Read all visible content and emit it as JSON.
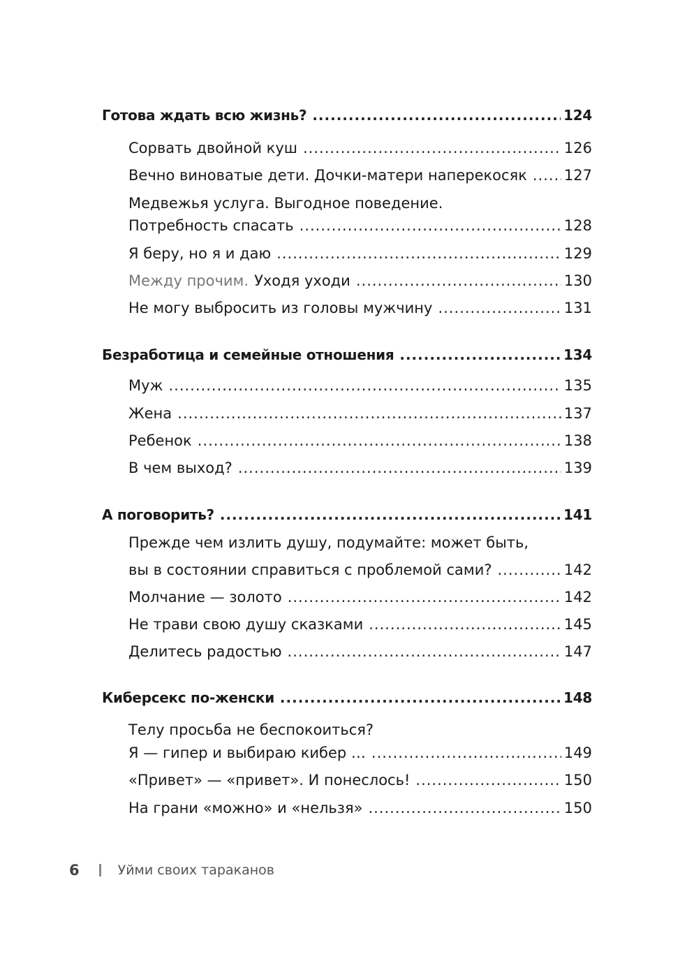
{
  "sections": [
    {
      "title": "Готова ждать всю жизнь?",
      "page": "124",
      "items": [
        {
          "title": "Сорвать двойной куш",
          "page": "126"
        },
        {
          "title": "Вечно виноватые дети. Дочки-матери наперекосяк",
          "page": "127"
        },
        {
          "line1": "Медвежья услуга. Выгодное поведение.",
          "title": "Потребность спасать",
          "page": "128"
        },
        {
          "title": "Я беру, но я и даю",
          "page": "129"
        },
        {
          "prefix": "Между прочим.",
          "title": "Уходя уходи",
          "page": "130"
        },
        {
          "title": "Не могу выбросить из головы мужчину",
          "page": "131"
        }
      ]
    },
    {
      "title": "Безработица и семейные отношения",
      "page": "134",
      "items": [
        {
          "title": "Муж",
          "page": "135"
        },
        {
          "title": "Жена",
          "page": "137"
        },
        {
          "title": "Ребенок",
          "page": "138"
        },
        {
          "title": "В чем выход?",
          "page": "139"
        }
      ]
    },
    {
      "title": "А поговорить?",
      "page": "141",
      "items": [
        {
          "line1": "Прежде чем излить душу, подумайте: может быть,",
          "title": "вы в состоянии справиться с проблемой сами?",
          "page": "142"
        },
        {
          "title": "Молчание — золото",
          "page": "142"
        },
        {
          "title": "Не трави свою душу сказками",
          "page": "145"
        },
        {
          "title": "Делитесь радостью",
          "page": "147"
        }
      ]
    },
    {
      "title": "Киберсекс по-женски",
      "page": "148",
      "items": [
        {
          "line1": "Телу просьба не беспокоиться?",
          "title": "Я — гипер и выбираю кибер …",
          "page": "149"
        },
        {
          "title": "«Привет» — «привет». И понеслось!",
          "page": "150"
        },
        {
          "title": "На грани «можно» и «нельзя»",
          "page": "150"
        }
      ]
    }
  ],
  "footer": {
    "page_number": "6",
    "book_title": "Уйми своих тараканов"
  }
}
